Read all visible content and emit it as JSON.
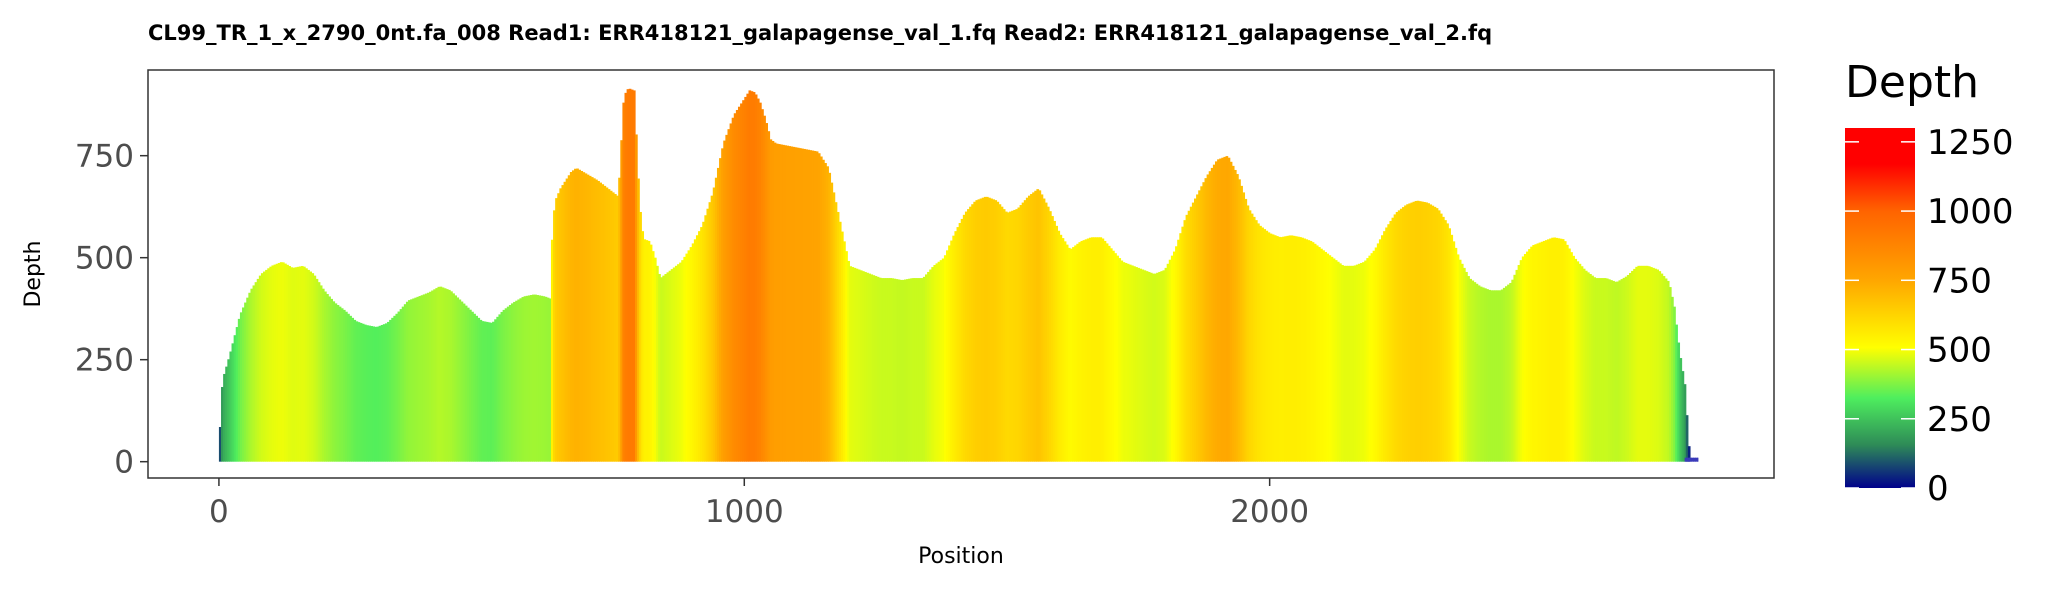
{
  "chart_data": {
    "type": "area",
    "title": "CL99_TR_1_x_2790_0nt.fa_008   Read1: ERR418121_galapagense_val_1.fq   Read2: ERR418121_galapagense_val_2.fq",
    "xlabel": "Position",
    "ylabel": "Depth",
    "xlim": [
      -135,
      2960
    ],
    "ylim": [
      -40,
      960
    ],
    "x_ticks": [
      0,
      1000,
      2000
    ],
    "x_tick_labels": [
      "0",
      "1000",
      "2000"
    ],
    "y_ticks": [
      0,
      250,
      500,
      750
    ],
    "y_tick_labels": [
      "0",
      "250",
      "500",
      "750"
    ],
    "grid": false,
    "legend": {
      "title": "Depth",
      "placement": "right",
      "ticks": [
        0,
        250,
        500,
        750,
        1000,
        1250
      ],
      "tick_labels": [
        "0",
        "250",
        "500",
        "750",
        "1000",
        "1250"
      ],
      "range": [
        0,
        1300
      ],
      "colors": [
        "#00008B",
        "#2E8B57",
        "#4EEE5E",
        "#FFFF00",
        "#FFA500",
        "#FF6300",
        "#FF0000"
      ],
      "stops": [
        0,
        0.12,
        0.25,
        0.39,
        0.58,
        0.77,
        0.9
      ]
    },
    "series": [
      {
        "x": [
          0,
          5,
          10,
          20,
          40,
          60,
          80,
          100,
          120,
          140,
          160,
          180,
          200,
          220,
          240,
          260,
          280,
          300,
          320,
          340,
          360,
          380,
          400,
          420,
          440,
          460,
          480,
          500,
          520,
          540,
          560,
          580,
          600,
          620,
          630,
          635,
          640,
          650,
          660,
          670,
          680,
          700,
          720,
          740,
          760,
          770,
          775,
          780,
          790,
          800,
          805,
          810,
          820,
          830,
          840,
          850,
          860,
          880,
          900,
          920,
          940,
          960,
          980,
          1000,
          1010,
          1020,
          1030,
          1040,
          1050,
          1060,
          1080,
          1100,
          1120,
          1140,
          1160,
          1180,
          1200,
          1220,
          1240,
          1260,
          1280,
          1300,
          1320,
          1340,
          1360,
          1380,
          1400,
          1420,
          1440,
          1460,
          1480,
          1500,
          1520,
          1540,
          1560,
          1580,
          1600,
          1620,
          1640,
          1660,
          1680,
          1700,
          1720,
          1740,
          1760,
          1780,
          1800,
          1820,
          1840,
          1860,
          1880,
          1900,
          1920,
          1940,
          1960,
          1980,
          2000,
          2020,
          2040,
          2060,
          2080,
          2100,
          2120,
          2140,
          2160,
          2180,
          2200,
          2220,
          2240,
          2260,
          2280,
          2300,
          2320,
          2340,
          2360,
          2380,
          2400,
          2420,
          2440,
          2460,
          2480,
          2500,
          2520,
          2540,
          2560,
          2580,
          2600,
          2620,
          2640,
          2660,
          2680,
          2700,
          2720,
          2740,
          2760,
          2770,
          2780,
          2785,
          2790,
          2800,
          2820
        ],
        "y": [
          25,
          175,
          215,
          260,
          360,
          420,
          460,
          480,
          490,
          475,
          480,
          460,
          420,
          390,
          370,
          345,
          335,
          330,
          340,
          365,
          395,
          405,
          415,
          430,
          420,
          395,
          370,
          345,
          340,
          370,
          390,
          405,
          410,
          405,
          400,
          580,
          640,
          670,
          690,
          710,
          720,
          705,
          690,
          670,
          650,
          880,
          910,
          915,
          910,
          640,
          570,
          545,
          540,
          500,
          450,
          460,
          470,
          490,
          530,
          580,
          660,
          780,
          850,
          890,
          910,
          905,
          880,
          840,
          790,
          780,
          775,
          770,
          765,
          760,
          720,
          600,
          480,
          470,
          460,
          450,
          450,
          445,
          450,
          450,
          480,
          500,
          560,
          610,
          640,
          650,
          640,
          610,
          620,
          650,
          670,
          620,
          560,
          520,
          540,
          550,
          550,
          520,
          490,
          480,
          470,
          460,
          470,
          520,
          600,
          650,
          700,
          740,
          750,
          700,
          620,
          580,
          560,
          550,
          555,
          550,
          540,
          520,
          500,
          480,
          480,
          490,
          520,
          570,
          610,
          630,
          640,
          635,
          620,
          580,
          500,
          450,
          430,
          420,
          420,
          440,
          500,
          530,
          540,
          550,
          545,
          500,
          470,
          450,
          450,
          440,
          455,
          480,
          480,
          470,
          440,
          380,
          270,
          230,
          190,
          0,
          0
        ]
      },
      {
        "x": [
          2790,
          2815
        ],
        "y": [
          3,
          3
        ]
      }
    ]
  }
}
